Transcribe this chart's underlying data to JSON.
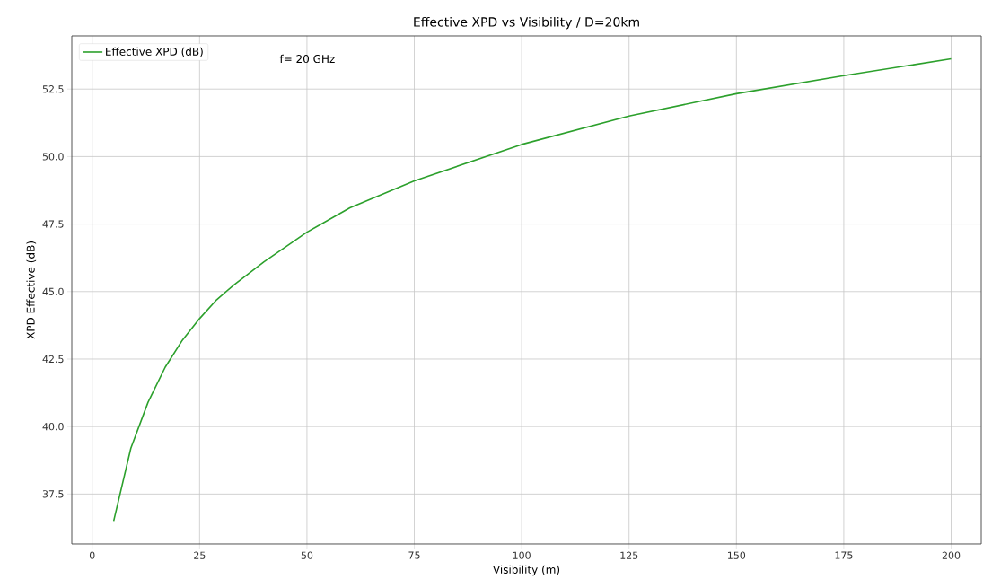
{
  "chart_data": {
    "type": "line",
    "title": "Effective XPD vs Visibility / D=20km",
    "xlabel": "Visibility (m)",
    "ylabel": "XPD Effective (dB)",
    "x": [
      5,
      9,
      13,
      17,
      21,
      25,
      29,
      33,
      40,
      50,
      60,
      75,
      100,
      125,
      150,
      175,
      200
    ],
    "series": [
      {
        "name": "Effective XPD (dB)",
        "color": "#2ca02c",
        "values": [
          36.5,
          39.2,
          40.9,
          42.2,
          43.2,
          44.0,
          44.7,
          45.25,
          46.1,
          47.2,
          48.1,
          49.1,
          50.45,
          51.5,
          52.33,
          53.0,
          53.62
        ]
      }
    ],
    "xlim": [
      -4.75,
      207
    ],
    "ylim": [
      35.65,
      54.47
    ],
    "xticks": [
      0,
      25,
      50,
      75,
      100,
      125,
      150,
      175,
      200
    ],
    "yticks": [
      {
        "value": 37.5,
        "label": "37.5"
      },
      {
        "value": 40,
        "label": "40.0"
      },
      {
        "value": 42.5,
        "label": "42.5"
      },
      {
        "value": 45,
        "label": "45.0"
      },
      {
        "value": 47.5,
        "label": "47.5"
      },
      {
        "value": 50,
        "label": "50.0"
      },
      {
        "value": 52.5,
        "label": "52.5"
      }
    ],
    "grid": true,
    "legend": "top left",
    "line_style": "solid",
    "marker": "none",
    "annotations": [
      "f= 20 GHz"
    ]
  }
}
